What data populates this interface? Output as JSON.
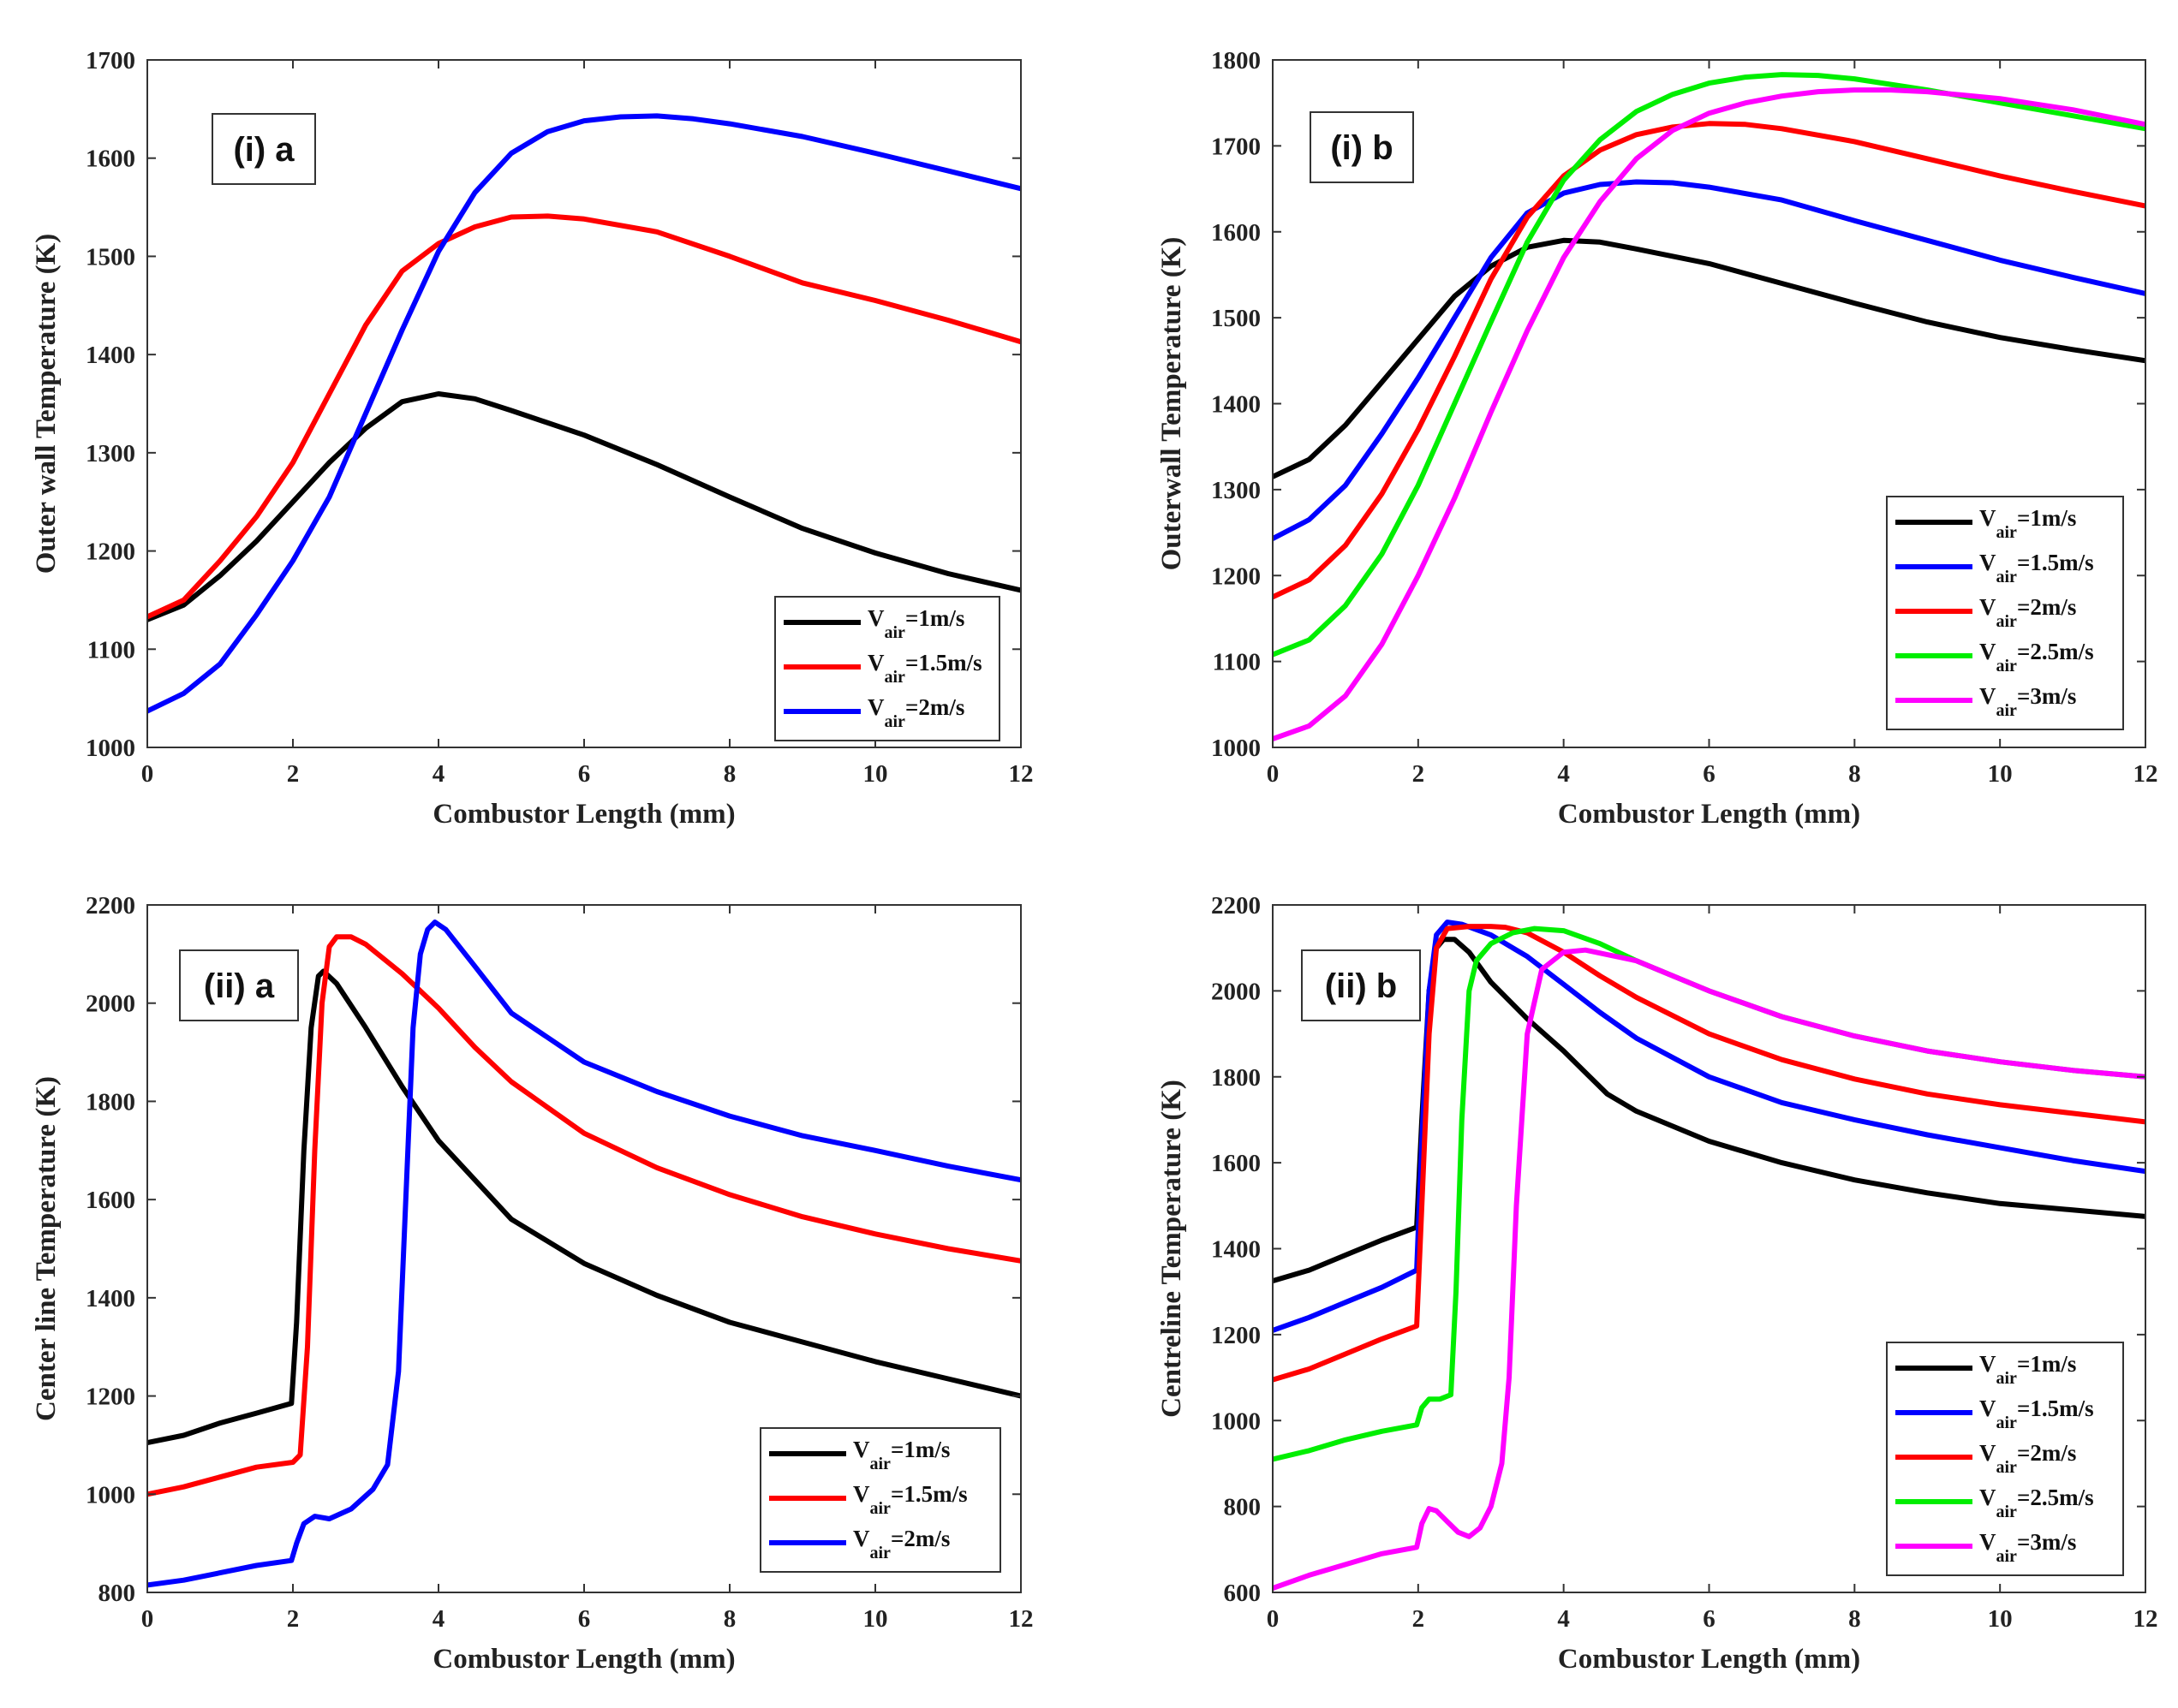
{
  "chart_data": [
    {
      "type": "line",
      "panel": "(i) a",
      "xlabel": "Combustor Length (mm)",
      "ylabel": "Outer wall Temperature (K)",
      "xlim": [
        0,
        12
      ],
      "ylim": [
        1000,
        1700
      ],
      "xticks": [
        0,
        2,
        4,
        6,
        8,
        10,
        12
      ],
      "yticks": [
        1000,
        1100,
        1200,
        1300,
        1400,
        1500,
        1600,
        1700
      ],
      "legend_position": "bottom-right",
      "series": [
        {
          "name": "V_air=1m/s",
          "label_main": "V",
          "label_sub": "air",
          "label_rest": "=1m/s",
          "color": "#000000",
          "x": [
            0,
            0.5,
            1,
            1.5,
            2,
            2.5,
            3,
            3.5,
            4,
            4.5,
            5,
            6,
            7,
            8,
            9,
            10,
            11,
            12
          ],
          "y": [
            1130,
            1145,
            1175,
            1210,
            1250,
            1290,
            1325,
            1352,
            1360,
            1355,
            1343,
            1318,
            1288,
            1255,
            1223,
            1198,
            1177,
            1160
          ]
        },
        {
          "name": "V_air=1.5m/s",
          "label_main": "V",
          "label_sub": "air",
          "label_rest": "=1.5m/s",
          "color": "#ff0000",
          "x": [
            0,
            0.5,
            1,
            1.5,
            2,
            2.5,
            3,
            3.5,
            4,
            4.5,
            5,
            5.5,
            6,
            7,
            8,
            9,
            10,
            11,
            12
          ],
          "y": [
            1133,
            1150,
            1190,
            1235,
            1290,
            1360,
            1430,
            1485,
            1513,
            1530,
            1540,
            1541,
            1538,
            1525,
            1500,
            1473,
            1455,
            1435,
            1413
          ]
        },
        {
          "name": "V_air=2m/s",
          "label_main": "V",
          "label_sub": "air",
          "label_rest": "=2m/s",
          "color": "#0000ff",
          "x": [
            0,
            0.5,
            1,
            1.5,
            2,
            2.5,
            3,
            3.5,
            4,
            4.5,
            5,
            5.5,
            6,
            6.5,
            7,
            7.5,
            8,
            9,
            10,
            11,
            12
          ],
          "y": [
            1037,
            1055,
            1085,
            1135,
            1190,
            1255,
            1340,
            1425,
            1505,
            1565,
            1605,
            1627,
            1638,
            1642,
            1643,
            1640,
            1635,
            1622,
            1605,
            1587,
            1569
          ]
        }
      ]
    },
    {
      "type": "line",
      "panel": "(i) b",
      "xlabel": "Combustor Length (mm)",
      "ylabel": "Outerwall Temperature (K)",
      "xlim": [
        0,
        12
      ],
      "ylim": [
        1000,
        1800
      ],
      "xticks": [
        0,
        2,
        4,
        6,
        8,
        10,
        12
      ],
      "yticks": [
        1000,
        1100,
        1200,
        1300,
        1400,
        1500,
        1600,
        1700,
        1800
      ],
      "legend_position": "bottom-right",
      "series": [
        {
          "name": "V_air=1m/s",
          "label_main": "V",
          "label_sub": "air",
          "label_rest": "=1m/s",
          "color": "#000000",
          "x": [
            0,
            0.5,
            1,
            1.5,
            2,
            2.5,
            3,
            3.5,
            4,
            4.5,
            5,
            6,
            7,
            8,
            9,
            10,
            11,
            12
          ],
          "y": [
            1315,
            1335,
            1375,
            1425,
            1475,
            1525,
            1560,
            1582,
            1590,
            1588,
            1580,
            1563,
            1540,
            1517,
            1495,
            1477,
            1463,
            1450
          ]
        },
        {
          "name": "V_air=1.5m/s",
          "label_main": "V",
          "label_sub": "air",
          "label_rest": "=1.5m/s",
          "color": "#0000ff",
          "x": [
            0,
            0.5,
            1,
            1.5,
            2,
            2.5,
            3,
            3.5,
            4,
            4.5,
            5,
            5.5,
            6,
            7,
            8,
            9,
            10,
            11,
            12
          ],
          "y": [
            1243,
            1265,
            1305,
            1365,
            1430,
            1500,
            1570,
            1622,
            1645,
            1655,
            1658,
            1657,
            1652,
            1637,
            1613,
            1590,
            1567,
            1547,
            1528
          ]
        },
        {
          "name": "V_air=2m/s",
          "label_main": "V",
          "label_sub": "air",
          "label_rest": "=2m/s",
          "color": "#ff0000",
          "x": [
            0,
            0.5,
            1,
            1.5,
            2,
            2.5,
            3,
            3.5,
            4,
            4.5,
            5,
            5.5,
            6,
            6.5,
            7,
            8,
            9,
            10,
            11,
            12
          ],
          "y": [
            1175,
            1195,
            1235,
            1295,
            1370,
            1455,
            1545,
            1617,
            1665,
            1695,
            1713,
            1722,
            1726,
            1725,
            1720,
            1705,
            1685,
            1665,
            1647,
            1630
          ]
        },
        {
          "name": "V_air=2.5m/s",
          "label_main": "V",
          "label_sub": "air",
          "label_rest": "=2.5m/s",
          "color": "#00ee00",
          "x": [
            0,
            0.5,
            1,
            1.5,
            2,
            2.5,
            3,
            3.5,
            4,
            4.5,
            5,
            5.5,
            6,
            6.5,
            7,
            7.5,
            8,
            9,
            10,
            11,
            12
          ],
          "y": [
            1108,
            1125,
            1165,
            1225,
            1305,
            1400,
            1495,
            1588,
            1660,
            1707,
            1740,
            1760,
            1773,
            1780,
            1783,
            1782,
            1778,
            1765,
            1750,
            1735,
            1720
          ]
        },
        {
          "name": "V_air=3m/s",
          "label_main": "V",
          "label_sub": "air",
          "label_rest": "=3m/s",
          "color": "#ff00ff",
          "x": [
            0,
            0.5,
            1,
            1.5,
            2,
            2.5,
            3,
            3.5,
            4,
            4.5,
            5,
            5.5,
            6,
            6.5,
            7,
            7.5,
            8,
            8.5,
            9,
            10,
            11,
            12
          ],
          "y": [
            1010,
            1025,
            1060,
            1120,
            1200,
            1290,
            1390,
            1485,
            1570,
            1635,
            1685,
            1718,
            1738,
            1750,
            1758,
            1763,
            1765,
            1765,
            1763,
            1755,
            1742,
            1725
          ]
        }
      ]
    },
    {
      "type": "line",
      "panel": "(ii) a",
      "xlabel": "Combustor Length (mm)",
      "ylabel": "Center line Temperature (K)",
      "xlim": [
        0,
        12
      ],
      "ylim": [
        800,
        2200
      ],
      "xticks": [
        0,
        2,
        4,
        6,
        8,
        10,
        12
      ],
      "yticks": [
        800,
        1000,
        1200,
        1400,
        1600,
        1800,
        2000,
        2200
      ],
      "legend_position": "bottom-right",
      "series": [
        {
          "name": "V_air=1m/s",
          "label_main": "V",
          "label_sub": "air",
          "label_rest": "=1m/s",
          "color": "#000000",
          "x": [
            0,
            0.5,
            1,
            1.5,
            1.98,
            2.05,
            2.15,
            2.25,
            2.35,
            2.42,
            2.6,
            3,
            3.5,
            4,
            5,
            6,
            7,
            8,
            9,
            10,
            11,
            12
          ],
          "y": [
            1105,
            1120,
            1145,
            1165,
            1185,
            1350,
            1700,
            1950,
            2055,
            2065,
            2040,
            1950,
            1830,
            1720,
            1560,
            1470,
            1405,
            1350,
            1310,
            1270,
            1235,
            1200
          ]
        },
        {
          "name": "V_air=1.5m/s",
          "label_main": "V",
          "label_sub": "air",
          "label_rest": "=1.5m/s",
          "color": "#ff0000",
          "x": [
            0,
            0.5,
            1,
            1.5,
            2,
            2.1,
            2.2,
            2.3,
            2.4,
            2.5,
            2.6,
            2.8,
            3,
            3.5,
            4,
            4.5,
            5,
            6,
            7,
            8,
            9,
            10,
            11,
            12
          ],
          "y": [
            1000,
            1015,
            1035,
            1055,
            1065,
            1080,
            1300,
            1700,
            2000,
            2115,
            2135,
            2135,
            2120,
            2060,
            1990,
            1910,
            1840,
            1735,
            1665,
            1610,
            1565,
            1530,
            1500,
            1475
          ]
        },
        {
          "name": "V_air=2m/s",
          "label_main": "V",
          "label_sub": "air",
          "label_rest": "=2m/s",
          "color": "#0000ff",
          "x": [
            0,
            0.5,
            1,
            1.5,
            1.98,
            2.05,
            2.15,
            2.3,
            2.5,
            2.8,
            3.1,
            3.3,
            3.45,
            3.55,
            3.65,
            3.75,
            3.85,
            3.95,
            4.1,
            4.5,
            5,
            6,
            7,
            8,
            9,
            10,
            11,
            12
          ],
          "y": [
            815,
            825,
            840,
            855,
            865,
            900,
            940,
            955,
            950,
            970,
            1010,
            1060,
            1250,
            1600,
            1950,
            2100,
            2150,
            2165,
            2150,
            2075,
            1980,
            1880,
            1820,
            1770,
            1730,
            1700,
            1668,
            1640
          ]
        }
      ]
    },
    {
      "type": "line",
      "panel": "(ii) b",
      "xlabel": "Combustor Length (mm)",
      "ylabel": "Centreline Temperature (K)",
      "xlim": [
        0,
        12
      ],
      "ylim": [
        600,
        2200
      ],
      "xticks": [
        0,
        2,
        4,
        6,
        8,
        10,
        12
      ],
      "yticks": [
        600,
        800,
        1000,
        1200,
        1400,
        1600,
        1800,
        2000,
        2200
      ],
      "legend_position": "bottom-right",
      "series": [
        {
          "name": "V_air=1m/s",
          "label_main": "V",
          "label_sub": "air",
          "label_rest": "=1m/s",
          "color": "#000000",
          "x": [
            0,
            0.5,
            1,
            1.5,
            1.98,
            2.05,
            2.15,
            2.25,
            2.35,
            2.5,
            2.7,
            3,
            3.5,
            4,
            4.3,
            4.6,
            5,
            6,
            7,
            8,
            9,
            10,
            11,
            12
          ],
          "y": [
            1325,
            1350,
            1385,
            1420,
            1450,
            1700,
            2000,
            2100,
            2120,
            2120,
            2090,
            2020,
            1935,
            1860,
            1810,
            1760,
            1720,
            1650,
            1600,
            1560,
            1530,
            1505,
            1490,
            1475
          ]
        },
        {
          "name": "V_air=1.5m/s",
          "label_main": "V",
          "label_sub": "air",
          "label_rest": "=1.5m/s",
          "color": "#0000ff",
          "x": [
            0,
            0.5,
            1,
            1.5,
            1.98,
            2.05,
            2.15,
            2.25,
            2.4,
            2.6,
            3,
            3.5,
            4,
            4.5,
            5,
            6,
            7,
            8,
            9,
            10,
            11,
            12
          ],
          "y": [
            1210,
            1240,
            1275,
            1310,
            1350,
            1650,
            2000,
            2130,
            2160,
            2155,
            2130,
            2080,
            2015,
            1950,
            1890,
            1800,
            1740,
            1700,
            1665,
            1635,
            1605,
            1580
          ]
        },
        {
          "name": "V_air=2m/s",
          "label_main": "V",
          "label_sub": "air",
          "label_rest": "=2m/s",
          "color": "#ff0000",
          "x": [
            0,
            0.5,
            1,
            1.5,
            1.98,
            2.05,
            2.15,
            2.25,
            2.4,
            2.7,
            3,
            3.2,
            3.5,
            4,
            4.5,
            5,
            6,
            7,
            8,
            9,
            10,
            11,
            12
          ],
          "y": [
            1095,
            1120,
            1155,
            1190,
            1220,
            1500,
            1900,
            2100,
            2145,
            2150,
            2150,
            2148,
            2135,
            2090,
            2035,
            1985,
            1900,
            1840,
            1795,
            1760,
            1735,
            1715,
            1695
          ]
        },
        {
          "name": "V_air=2.5m/s",
          "label_main": "V",
          "label_sub": "air",
          "label_rest": "=2.5m/s",
          "color": "#00ee00",
          "x": [
            0,
            0.5,
            1,
            1.5,
            1.98,
            2.05,
            2.15,
            2.3,
            2.45,
            2.52,
            2.6,
            2.7,
            2.8,
            3,
            3.3,
            3.6,
            4,
            4.5,
            5,
            6,
            7,
            8,
            9,
            10,
            11,
            12
          ],
          "y": [
            910,
            930,
            955,
            975,
            990,
            1030,
            1050,
            1050,
            1060,
            1300,
            1700,
            2000,
            2070,
            2110,
            2135,
            2145,
            2140,
            2110,
            2070,
            2000,
            1940,
            1895,
            1860,
            1835,
            1815,
            1800
          ]
        },
        {
          "name": "V_air=3m/s",
          "label_main": "V",
          "label_sub": "air",
          "label_rest": "=3m/s",
          "color": "#ff00ff",
          "x": [
            0,
            0.5,
            1,
            1.5,
            1.98,
            2.05,
            2.15,
            2.25,
            2.4,
            2.55,
            2.7,
            2.85,
            3,
            3.15,
            3.25,
            3.35,
            3.5,
            3.7,
            4,
            4.3,
            5,
            6,
            7,
            8,
            9,
            10,
            11,
            12
          ],
          "y": [
            610,
            640,
            665,
            690,
            705,
            760,
            795,
            790,
            765,
            740,
            730,
            750,
            800,
            900,
            1100,
            1500,
            1900,
            2050,
            2090,
            2095,
            2070,
            2000,
            1940,
            1895,
            1860,
            1835,
            1815,
            1800
          ]
        }
      ]
    }
  ]
}
